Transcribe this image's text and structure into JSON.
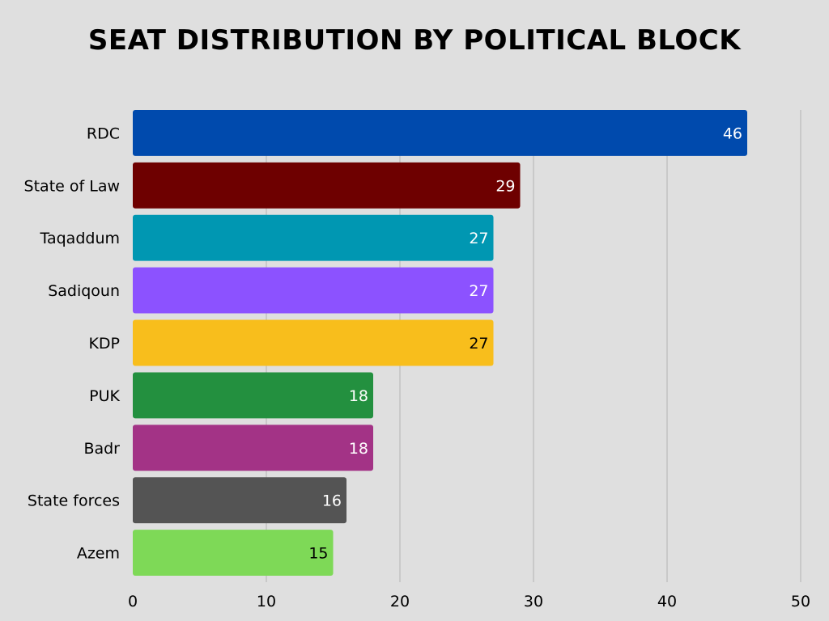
{
  "chart_data": {
    "type": "bar",
    "orientation": "horizontal",
    "title": "SEAT DISTRIBUTION BY POLITICAL BLOCK",
    "xlabel": "",
    "ylabel": "",
    "xlim": [
      0,
      50
    ],
    "xticks": [
      0,
      10,
      20,
      30,
      40,
      50
    ],
    "grid": "vertical",
    "categories": [
      "RDC",
      "State of Law",
      "Taqaddum",
      "Sadiqoun",
      "KDP",
      "PUK",
      "Badr",
      "State forces",
      "Azem"
    ],
    "values": [
      46,
      29,
      27,
      27,
      27,
      18,
      18,
      16,
      15
    ],
    "colors": [
      "#004aad",
      "#6e0000",
      "#0097b2",
      "#8c52ff",
      "#f8be1c",
      "#23903f",
      "#a33386",
      "#545454",
      "#7ed957"
    ],
    "label_colors": [
      "#ffffff",
      "#ffffff",
      "#ffffff",
      "#ffffff",
      "#000000",
      "#ffffff",
      "#ffffff",
      "#ffffff",
      "#000000"
    ],
    "data_labels": true
  }
}
